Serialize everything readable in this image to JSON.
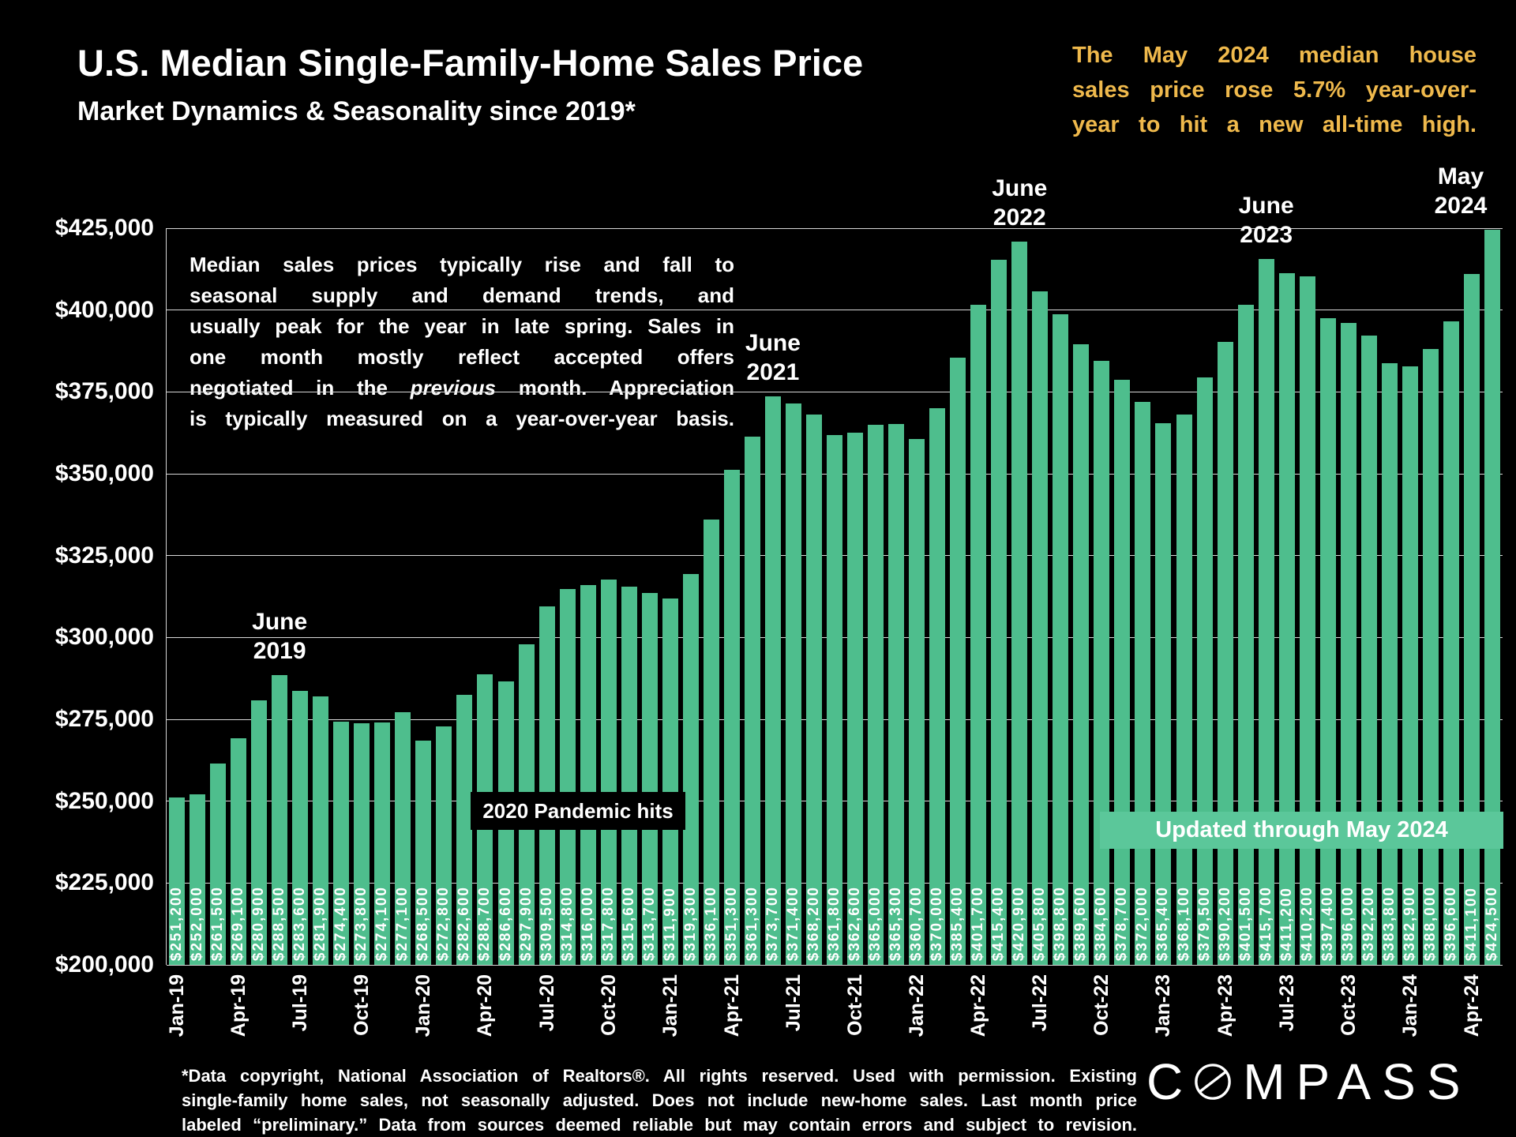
{
  "theme": {
    "background": "#000000",
    "bar_green": "#4EBE8D",
    "banner_green": "#5BC79A",
    "accent_gold": "#EFB94C",
    "grid": "#D8D8D8",
    "text": "#FFFFFF"
  },
  "header": {
    "title": "U.S. Median Single-Family-Home Sales Price",
    "subtitle": "Market Dynamics & Seasonality since 2019*",
    "highlight_note": "The May 2024 median house\nsales price rose 5.7% year-over-\nyear to hit a new all-time high."
  },
  "annotations": {
    "body_before_italic": "Median sales prices typically rise and fall to\nseasonal supply and demand trends, and\nusually peak for the year in late spring. Sales in\none month mostly reflect accepted offers\nnegotiated in the ",
    "body_italic": "previous",
    "body_after_italic": " month. Appreciation\nis typically measured on a year-over-year basis.",
    "pandemic_label": "2020 Pandemic hits",
    "updated_banner": "Updated through May 2024",
    "peaks": [
      {
        "label": "June\n2019",
        "bar_index": 5
      },
      {
        "label": "June\n2021",
        "bar_index": 29
      },
      {
        "label": "June\n2022",
        "bar_index": 41
      },
      {
        "label": "June\n2023",
        "bar_index": 53
      },
      {
        "label": "May\n2024",
        "bar_index": 64
      }
    ]
  },
  "chart_data": {
    "type": "bar",
    "title": "U.S. Median Single-Family-Home Sales Price",
    "xlabel": "",
    "ylabel": "",
    "grid": true,
    "ylim": [
      200000,
      425000
    ],
    "y_tick_interval": 25000,
    "y_tick_labels": [
      "$425,000",
      "$400,000",
      "$375,000",
      "$350,000",
      "$325,000",
      "$300,000",
      "$275,000",
      "$250,000",
      "$225,000",
      "$200,000"
    ],
    "x_tick_step": 3,
    "x_tick_labels": [
      "Jan-19",
      "Apr-19",
      "Jul-19",
      "Oct-19",
      "Jan-20",
      "Apr-20",
      "Jul-20",
      "Oct-20",
      "Jan-21",
      "Apr-21",
      "Jul-21",
      "Oct-21",
      "Jan-22",
      "Apr-22",
      "Jul-22",
      "Oct-22",
      "Jan-23",
      "Apr-23",
      "Jul-23",
      "Oct-23",
      "Jan-24",
      "Apr-24"
    ],
    "categories": [
      "Jan-19",
      "Feb-19",
      "Mar-19",
      "Apr-19",
      "May-19",
      "Jun-19",
      "Jul-19",
      "Aug-19",
      "Sep-19",
      "Oct-19",
      "Nov-19",
      "Dec-19",
      "Jan-20",
      "Feb-20",
      "Mar-20",
      "Apr-20",
      "May-20",
      "Jun-20",
      "Jul-20",
      "Aug-20",
      "Sep-20",
      "Oct-20",
      "Nov-20",
      "Dec-20",
      "Jan-21",
      "Feb-21",
      "Mar-21",
      "Apr-21",
      "May-21",
      "Jun-21",
      "Jul-21",
      "Aug-21",
      "Sep-21",
      "Oct-21",
      "Nov-21",
      "Dec-21",
      "Jan-22",
      "Feb-22",
      "Mar-22",
      "Apr-22",
      "May-22",
      "Jun-22",
      "Jul-22",
      "Aug-22",
      "Sep-22",
      "Oct-22",
      "Nov-22",
      "Dec-22",
      "Jan-23",
      "Feb-23",
      "Mar-23",
      "Apr-23",
      "May-23",
      "Jun-23",
      "Jul-23",
      "Aug-23",
      "Sep-23",
      "Oct-23",
      "Nov-23",
      "Dec-23",
      "Jan-24",
      "Feb-24",
      "Mar-24",
      "Apr-24",
      "May-24"
    ],
    "values": [
      251200,
      252000,
      261500,
      269100,
      280900,
      288500,
      283600,
      281900,
      274400,
      273800,
      274100,
      277100,
      268500,
      272800,
      282600,
      288700,
      286600,
      297900,
      309500,
      314800,
      316000,
      317800,
      315600,
      313700,
      311900,
      319300,
      336100,
      351300,
      361300,
      373700,
      371400,
      368200,
      361800,
      362600,
      365000,
      365300,
      360700,
      370000,
      385400,
      401700,
      415400,
      420900,
      405800,
      398800,
      389600,
      384600,
      378700,
      372000,
      365400,
      368100,
      379500,
      390200,
      401500,
      415700,
      411200,
      410200,
      397400,
      396000,
      392200,
      383800,
      382900,
      388000,
      396600,
      411100,
      424500
    ]
  },
  "footer": {
    "disclaimer": "*Data copyright, National Association of Realtors®. All rights reserved. Used with permission. Existing\nsingle-family home sales, not seasonally adjusted. Does not include new-home sales. Last month price\nlabeled “preliminary.” Data from sources deemed reliable but may contain errors and subject to revision.",
    "logo_prefix": "C",
    "logo_suffix": "MPASS"
  }
}
